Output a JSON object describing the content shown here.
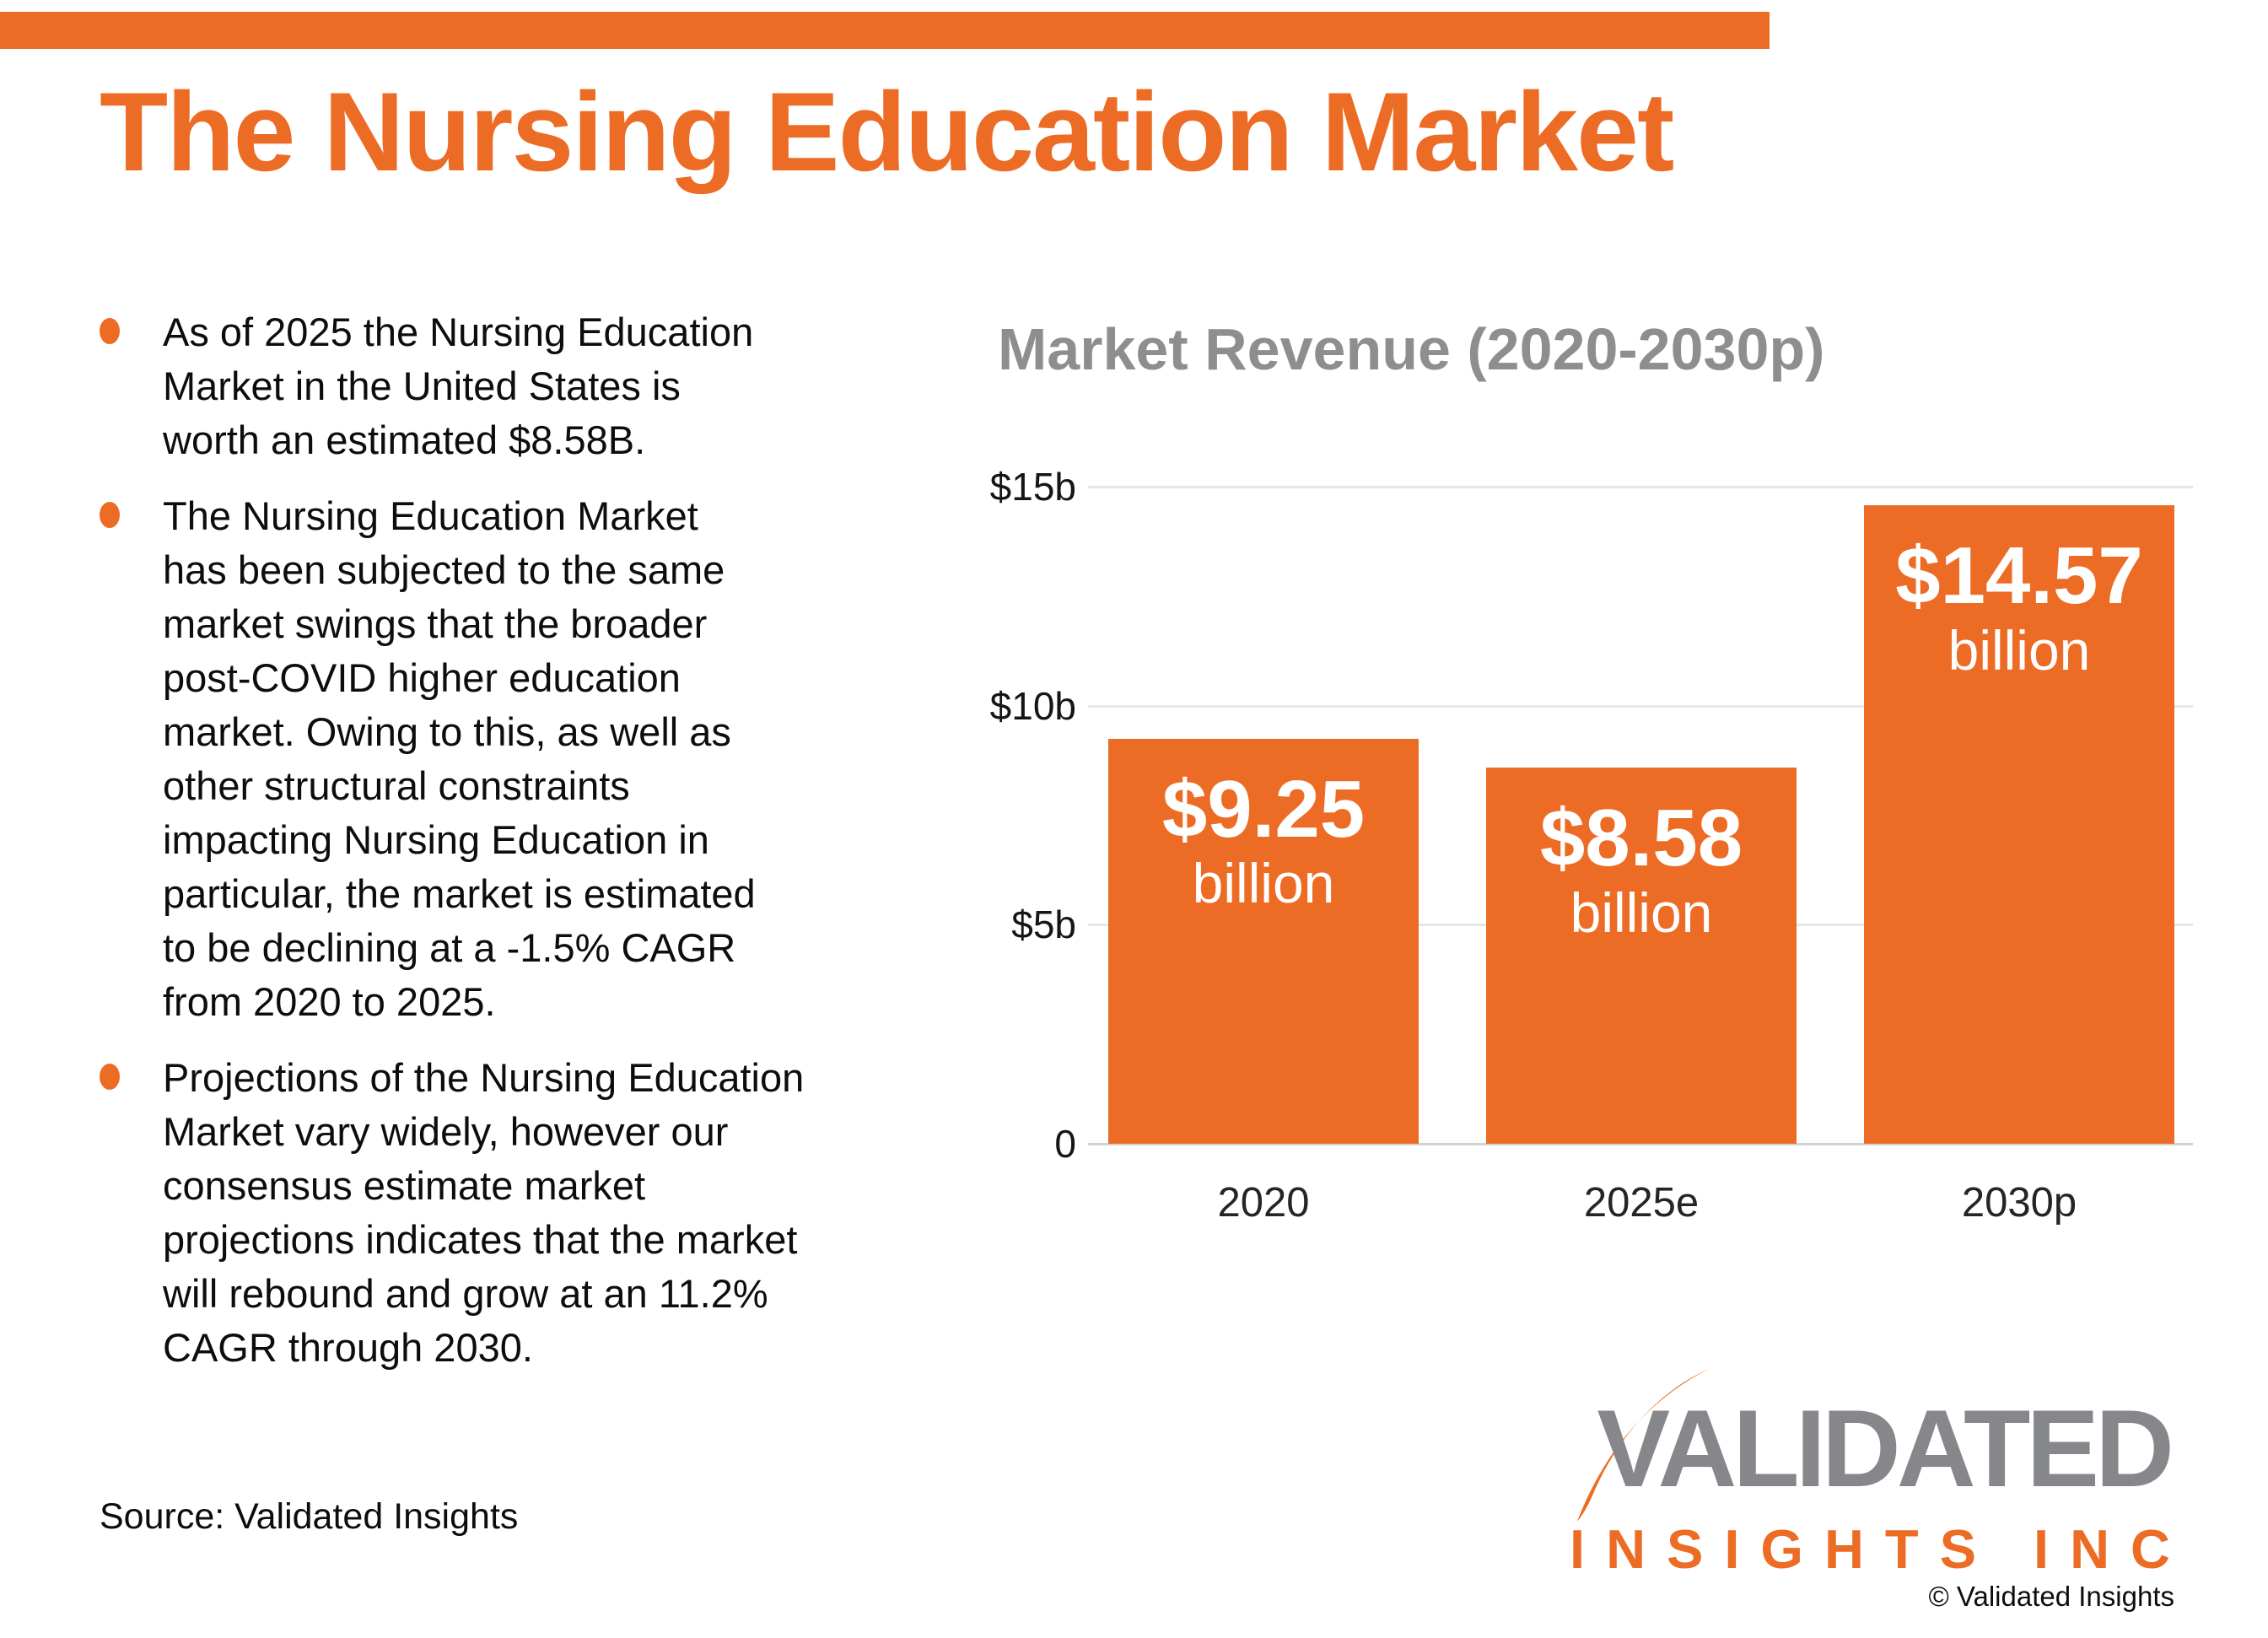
{
  "page": {
    "title": "The Nursing Education Market",
    "source": "Source: Validated Insights",
    "copyright": "© Validated Insights"
  },
  "colors": {
    "accent": "#EC6C26",
    "title_gray": "#8C8E90",
    "logo_gray": "#85878A",
    "grid": "#E6E7E8",
    "axis": "#D2D3D4",
    "ink": "#111111"
  },
  "bullets": [
    "As of 2025 the Nursing Education\nMarket in the United States is\nworth an estimated $8.58B.",
    "The Nursing Education Market\nhas been subjected to the same\nmarket swings that the broader\npost-COVID higher education\nmarket. Owing to this, as well as\nother structural constraints\nimpacting Nursing Education in\nparticular, the market is estimated\nto be declining at a -1.5% CAGR\nfrom 2020 to 2025.",
    "Projections of the Nursing Education\nMarket vary widely, however our\nconsensus estimate market\nprojections indicates that the market\nwill rebound and grow at an 11.2%\nCAGR through 2030."
  ],
  "chart_data": {
    "type": "bar",
    "title": "Market Revenue (2020-2030p)",
    "categories": [
      "2020",
      "2025e",
      "2030p"
    ],
    "values": [
      9.25,
      8.58,
      14.57
    ],
    "bar_labels": [
      {
        "value": "$9.25",
        "unit": "billion"
      },
      {
        "value": "$8.58",
        "unit": "billion"
      },
      {
        "value": "$14.57",
        "unit": "billion"
      }
    ],
    "ylim": [
      0,
      15
    ],
    "yticks": [
      {
        "label": "$15b",
        "value": 15
      },
      {
        "label": "$10b",
        "value": 10
      },
      {
        "label": "$5b",
        "value": 5
      },
      {
        "label": "0",
        "value": 0
      }
    ],
    "xlabel": "",
    "ylabel": "",
    "grid": true,
    "legend_position": "none",
    "bar_color": "#EC6C26"
  },
  "logo": {
    "line1": "VALIDATED",
    "line2": "INSIGHTS INC"
  }
}
